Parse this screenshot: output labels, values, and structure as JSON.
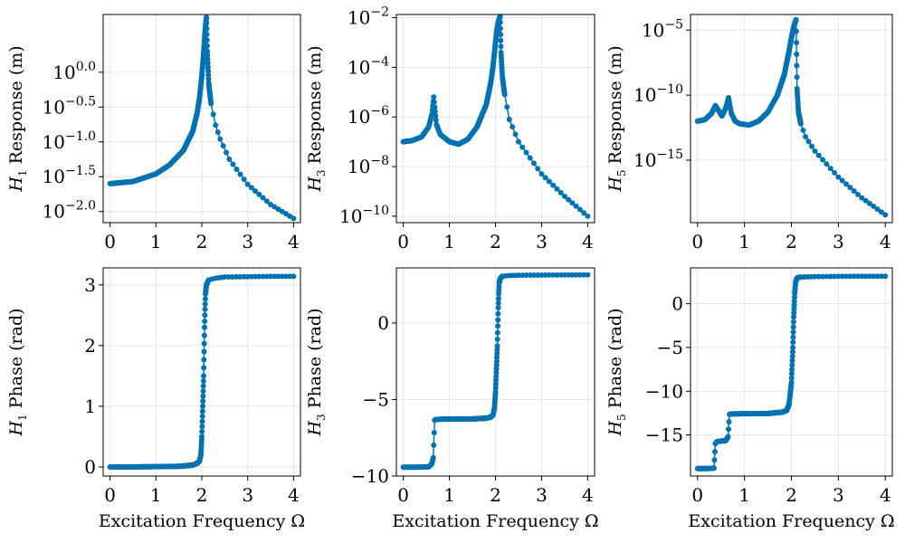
{
  "figure": {
    "xlabel": "Excitation Frequency Ω",
    "series_color": "#0072b2",
    "grid_color": "#e6e6e6",
    "frame_color": "#000000"
  },
  "chart_data": [
    {
      "type": "line",
      "title": "",
      "ylabel": {
        "italic": "H",
        "sub": "1",
        "rest": " Response (m)"
      },
      "xlabel": "",
      "yscale": "log10",
      "xlim": [
        -0.15,
        4.15
      ],
      "ylim": [
        -2.16,
        0.83
      ],
      "xticks": [
        0,
        1,
        2,
        3,
        4
      ],
      "yticks": [
        {
          "value": -2.0,
          "base": "10",
          "exp": "−2.0"
        },
        {
          "value": -1.5,
          "base": "10",
          "exp": "−1.5"
        },
        {
          "value": -1.0,
          "base": "10",
          "exp": "−1.0"
        },
        {
          "value": -0.5,
          "base": "10",
          "exp": "−0.5"
        },
        {
          "value": 0.0,
          "base": "10",
          "exp": "0.0"
        }
      ],
      "peak_at": 2.1,
      "series": [
        {
          "name": "H1 response",
          "x": [
            0,
            0.5,
            1.0,
            1.3,
            1.6,
            1.8,
            1.9,
            1.95,
            2.0,
            2.03,
            2.06,
            2.08,
            2.1,
            2.12,
            2.15,
            2.2,
            2.3,
            2.4,
            2.6,
            3.0,
            3.5,
            4.0
          ],
          "y": [
            -1.6,
            -1.57,
            -1.46,
            -1.33,
            -1.12,
            -0.85,
            -0.58,
            -0.37,
            -0.05,
            0.2,
            0.48,
            0.66,
            0.79,
            0.3,
            -0.15,
            -0.45,
            -0.76,
            -0.96,
            -1.25,
            -1.61,
            -1.9,
            -2.1
          ]
        }
      ]
    },
    {
      "type": "line",
      "title": "",
      "ylabel": {
        "italic": "H",
        "sub": "3",
        "rest": " Response (m)"
      },
      "xlabel": "",
      "yscale": "log10",
      "xlim": [
        -0.15,
        4.15
      ],
      "ylim": [
        -10.26,
        -1.87
      ],
      "xticks": [
        0,
        1,
        2,
        3,
        4
      ],
      "yticks": [
        {
          "value": -10,
          "base": "10",
          "exp": "−10"
        },
        {
          "value": -8,
          "base": "10",
          "exp": "−8"
        },
        {
          "value": -6,
          "base": "10",
          "exp": "−6"
        },
        {
          "value": -4,
          "base": "10",
          "exp": "−4"
        },
        {
          "value": -2,
          "base": "10",
          "exp": "−2"
        }
      ],
      "peak_at": 2.1,
      "series": [
        {
          "name": "H3 response",
          "x": [
            0,
            0.2,
            0.4,
            0.55,
            0.62,
            0.66,
            0.68,
            0.72,
            0.8,
            1.0,
            1.2,
            1.4,
            1.6,
            1.8,
            1.9,
            1.95,
            2.0,
            2.03,
            2.06,
            2.08,
            2.1,
            2.12,
            2.15,
            2.2,
            2.3,
            2.5,
            3.0,
            3.5,
            4.0
          ],
          "y": [
            -7.0,
            -6.95,
            -6.8,
            -6.4,
            -5.9,
            -5.2,
            -5.6,
            -6.3,
            -6.7,
            -7.0,
            -7.1,
            -6.9,
            -6.4,
            -5.5,
            -4.6,
            -3.9,
            -3.0,
            -2.5,
            -2.2,
            -2.05,
            -1.95,
            -3.4,
            -4.4,
            -5.1,
            -6.1,
            -7.0,
            -8.3,
            -9.2,
            -10.0
          ]
        }
      ]
    },
    {
      "type": "line",
      "title": "",
      "ylabel": {
        "italic": "H",
        "sub": "5",
        "rest": " Response (m)"
      },
      "xlabel": "",
      "yscale": "log10",
      "xlim": [
        -0.15,
        4.15
      ],
      "ylim": [
        -19.8,
        -3.8
      ],
      "xticks": [
        0,
        1,
        2,
        3,
        4
      ],
      "yticks": [
        {
          "value": -15,
          "base": "10",
          "exp": "−15"
        },
        {
          "value": -10,
          "base": "10",
          "exp": "−10"
        },
        {
          "value": -5,
          "base": "10",
          "exp": "−5"
        }
      ],
      "peak_at": 2.1,
      "series": [
        {
          "name": "H5 response",
          "x": [
            0,
            0.15,
            0.3,
            0.38,
            0.45,
            0.52,
            0.6,
            0.66,
            0.72,
            0.8,
            0.9,
            1.1,
            1.3,
            1.5,
            1.7,
            1.85,
            1.95,
            2.0,
            2.04,
            2.08,
            2.1,
            2.12,
            2.15,
            2.2,
            2.3,
            2.5,
            3.0,
            3.5,
            4.0
          ],
          "y": [
            -12.0,
            -11.9,
            -11.4,
            -10.8,
            -11.2,
            -11.6,
            -11.0,
            -10.2,
            -11.4,
            -12.0,
            -12.2,
            -12.3,
            -12.0,
            -11.3,
            -10.0,
            -8.4,
            -6.6,
            -5.6,
            -4.9,
            -4.4,
            -4.2,
            -9.5,
            -11.3,
            -12.2,
            -13.2,
            -14.3,
            -16.3,
            -17.9,
            -19.2
          ]
        }
      ]
    },
    {
      "type": "line",
      "title": "",
      "ylabel": {
        "italic": "H",
        "sub": "1",
        "rest": " Phase (rad)"
      },
      "xlabel": "Excitation Frequency Ω",
      "yscale": "linear",
      "xlim": [
        -0.15,
        4.15
      ],
      "ylim": [
        -0.15,
        3.28
      ],
      "xticks": [
        0,
        1,
        2,
        3,
        4
      ],
      "yticks": [
        {
          "value": 0,
          "label": "0"
        },
        {
          "value": 1,
          "label": "1"
        },
        {
          "value": 2,
          "label": "2"
        },
        {
          "value": 3,
          "label": "3"
        }
      ],
      "peak_at": 2.05,
      "series": [
        {
          "name": "H1 phase",
          "x": [
            0,
            0.5,
            1.0,
            1.5,
            1.8,
            1.9,
            1.95,
            1.98,
            2.0,
            2.02,
            2.04,
            2.05,
            2.06,
            2.07,
            2.08,
            2.1,
            2.15,
            2.3,
            2.5,
            3.0,
            3.5,
            4.0
          ],
          "y": [
            0.0,
            0.0,
            0.005,
            0.01,
            0.03,
            0.06,
            0.1,
            0.2,
            0.5,
            1.0,
            1.5,
            1.9,
            2.3,
            2.6,
            2.85,
            3.0,
            3.08,
            3.11,
            3.13,
            3.135,
            3.14,
            3.14
          ]
        }
      ]
    },
    {
      "type": "line",
      "title": "",
      "ylabel": {
        "italic": "H",
        "sub": "3",
        "rest": " Phase (rad)"
      },
      "xlabel": "Excitation Frequency Ω",
      "yscale": "linear",
      "xlim": [
        -0.15,
        4.15
      ],
      "ylim": [
        -10.0,
        3.6
      ],
      "xticks": [
        0,
        1,
        2,
        3,
        4
      ],
      "yticks": [
        {
          "value": -10,
          "label": "−10"
        },
        {
          "value": -5,
          "label": "−5"
        },
        {
          "value": 0,
          "label": "0"
        }
      ],
      "peak_at": 2.05,
      "series": [
        {
          "name": "H3 phase",
          "x": [
            0,
            0.3,
            0.55,
            0.62,
            0.65,
            0.68,
            0.72,
            0.9,
            1.2,
            1.5,
            1.8,
            1.9,
            1.95,
            1.98,
            2.0,
            2.02,
            2.04,
            2.05,
            2.06,
            2.07,
            2.08,
            2.1,
            2.15,
            2.3,
            2.5,
            3.0,
            3.5,
            4.0
          ],
          "y": [
            -9.42,
            -9.42,
            -9.4,
            -9.2,
            -8.8,
            -6.35,
            -6.3,
            -6.28,
            -6.28,
            -6.27,
            -6.22,
            -6.15,
            -6.0,
            -5.5,
            -4.5,
            -3.0,
            -1.5,
            -0.2,
            1.0,
            1.9,
            2.6,
            2.9,
            3.05,
            3.1,
            3.12,
            3.13,
            3.14,
            3.14
          ]
        }
      ]
    },
    {
      "type": "line",
      "title": "",
      "ylabel": {
        "italic": "H",
        "sub": "5",
        "rest": " Phase (rad)"
      },
      "xlabel": "Excitation Frequency Ω",
      "yscale": "linear",
      "xlim": [
        -0.15,
        4.15
      ],
      "ylim": [
        -19.7,
        4.1
      ],
      "xticks": [
        0,
        1,
        2,
        3,
        4
      ],
      "yticks": [
        {
          "value": -15,
          "label": "−15"
        },
        {
          "value": -10,
          "label": "−10"
        },
        {
          "value": -5,
          "label": "−5"
        },
        {
          "value": 0,
          "label": "0"
        }
      ],
      "peak_at": 2.05,
      "series": [
        {
          "name": "H5 phase",
          "x": [
            0,
            0.2,
            0.35,
            0.38,
            0.42,
            0.5,
            0.6,
            0.65,
            0.68,
            0.72,
            0.9,
            1.2,
            1.5,
            1.8,
            1.9,
            1.95,
            2.0,
            2.03,
            2.05,
            2.07,
            2.09,
            2.12,
            2.2,
            2.5,
            3.0,
            3.5,
            4.0
          ],
          "y": [
            -18.85,
            -18.85,
            -18.8,
            -16.0,
            -15.75,
            -15.7,
            -15.65,
            -15.2,
            -12.65,
            -12.6,
            -12.58,
            -12.57,
            -12.55,
            -12.4,
            -12.2,
            -11.5,
            -9.0,
            -5.0,
            -1.5,
            1.2,
            2.5,
            2.95,
            3.05,
            3.1,
            3.13,
            3.14,
            3.14
          ]
        }
      ]
    }
  ]
}
